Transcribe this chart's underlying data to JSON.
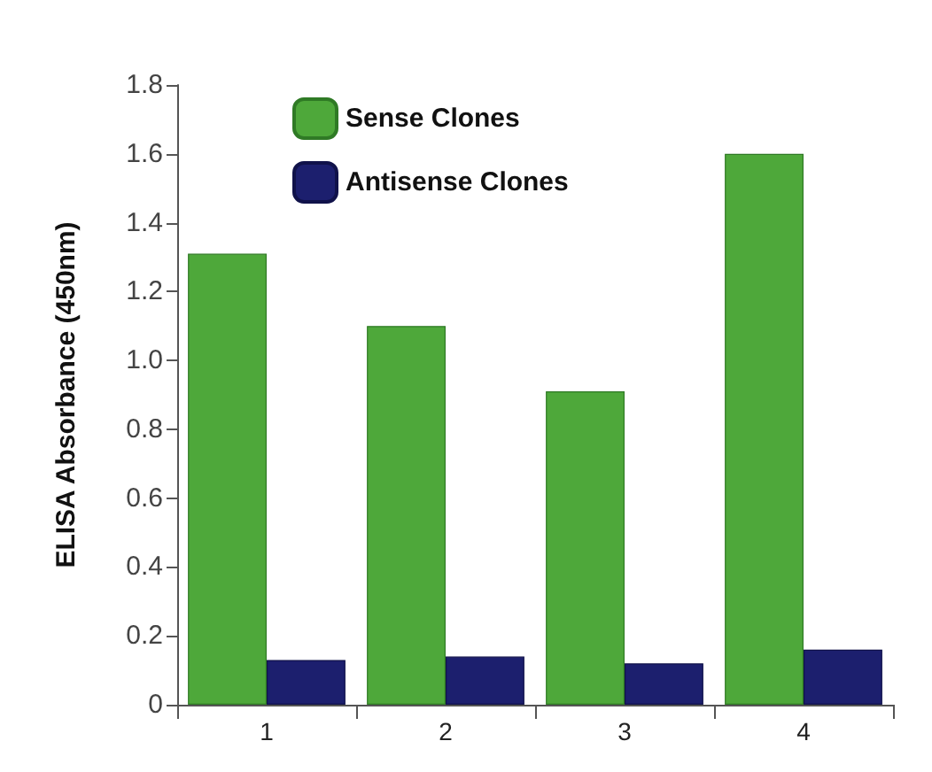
{
  "chart_data": {
    "type": "bar",
    "ylabel": "ELISA Absorbance (450nm)",
    "categories": [
      "1",
      "2",
      "3",
      "4"
    ],
    "series": [
      {
        "name": "Sense Clones",
        "color": "#4ea83a",
        "values": [
          1.31,
          1.1,
          0.91,
          1.6
        ]
      },
      {
        "name": "Antisense Clones",
        "color": "#1c1f6e",
        "values": [
          0.13,
          0.14,
          0.12,
          0.16
        ]
      }
    ],
    "ylim": [
      0,
      1.8
    ],
    "yticks": [
      0,
      0.2,
      0.4,
      0.6,
      0.8,
      {
        "value": 1,
        "label": "1.0"
      },
      1.2,
      1.4,
      1.6,
      1.8
    ],
    "grid": false,
    "legend": "top"
  }
}
